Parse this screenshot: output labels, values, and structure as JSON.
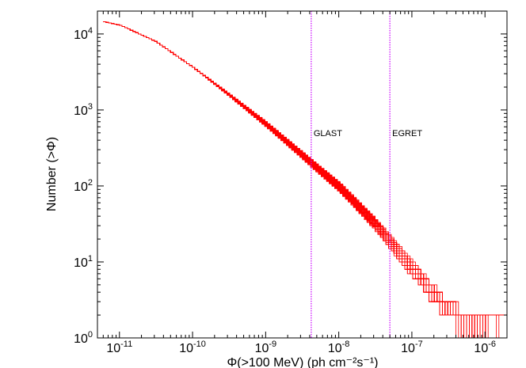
{
  "chart_data": {
    "type": "line",
    "title": "",
    "xlabel": "Φ(>100 MeV) (ph cm⁻²s⁻¹)",
    "ylabel": "Number (>Φ)",
    "xscale": "log",
    "yscale": "log",
    "xlim": [
      5e-12,
      2e-06
    ],
    "ylim": [
      1,
      20000
    ],
    "grid": false,
    "legend": "none",
    "line_color": "#ff0000",
    "x_tick_labels": [
      {
        "mantissa": "10",
        "exp": "-11"
      },
      {
        "mantissa": "10",
        "exp": "-10"
      },
      {
        "mantissa": "10",
        "exp": "-9"
      },
      {
        "mantissa": "10",
        "exp": "-8"
      },
      {
        "mantissa": "10",
        "exp": "-7"
      },
      {
        "mantissa": "10",
        "exp": "-6"
      }
    ],
    "y_tick_labels": [
      {
        "mantissa": "10",
        "exp": "0"
      },
      {
        "mantissa": "10",
        "exp": "1"
      },
      {
        "mantissa": "10",
        "exp": "2"
      },
      {
        "mantissa": "10",
        "exp": "3"
      },
      {
        "mantissa": "10",
        "exp": "4"
      }
    ],
    "annotations": [
      {
        "label": "GLAST",
        "x": 4.2e-09,
        "color": "#cc00ff"
      },
      {
        "label": "EGRET",
        "x": 5e-08,
        "color": "#cc00ff"
      }
    ],
    "series_count": 60,
    "series_mean": {
      "x": [
        6e-12,
        1e-11,
        3e-11,
        1e-10,
        3e-10,
        1e-09,
        3e-09,
        1e-08,
        3e-08,
        1e-07,
        3e-07,
        1e-06
      ],
      "y": [
        14500,
        13000,
        8000,
        3600,
        1600,
        640,
        260,
        95,
        32,
        8,
        2.3,
        1.2
      ]
    }
  }
}
